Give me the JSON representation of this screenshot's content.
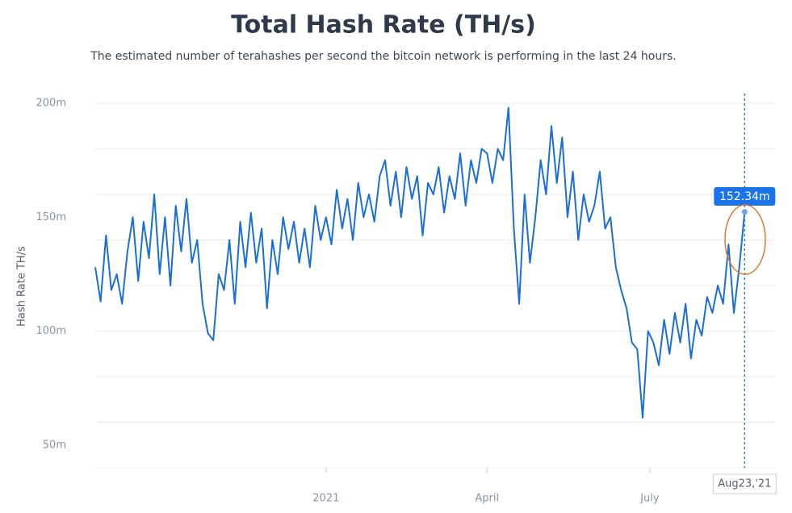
{
  "chart_data": {
    "type": "line",
    "title": "Total Hash Rate (TH/s)",
    "subtitle": "The estimated number of terahashes per second the bitcoin network is performing in the last 24 hours.",
    "y_label": "Hash Rate TH/s",
    "color": "#1a6fd6",
    "xlim": [
      "2020-08-25",
      "2021-09-09"
    ],
    "xticks": [
      {
        "value": "2021-01-01",
        "label": "2021"
      },
      {
        "value": "2021-04-01",
        "label": "April"
      },
      {
        "value": "2021-07-01",
        "label": "July"
      }
    ],
    "ylim": [
      40000000.0,
      200000000.0
    ],
    "yticks": [
      {
        "value": 50000000.0,
        "label": "50m"
      },
      {
        "value": 100000000.0,
        "label": "100m"
      },
      {
        "value": 150000000.0,
        "label": "150m"
      },
      {
        "value": 200000000.0,
        "label": "200m"
      }
    ],
    "grid_lines": [
      40000000.0,
      60000000.0,
      80000000.0,
      100000000.0,
      120000000.0,
      140000000.0,
      160000000.0,
      180000000.0,
      200000000.0
    ],
    "tooltip": {
      "x": "2021-08-23",
      "x_label": "Aug23,'21",
      "value": 152340000,
      "value_label": "152.34m"
    },
    "x": [
      "2020-08-25",
      "2020-08-28",
      "2020-08-31",
      "2020-09-03",
      "2020-09-06",
      "2020-09-09",
      "2020-09-12",
      "2020-09-15",
      "2020-09-18",
      "2020-09-21",
      "2020-09-24",
      "2020-09-27",
      "2020-09-30",
      "2020-10-03",
      "2020-10-06",
      "2020-10-09",
      "2020-10-12",
      "2020-10-15",
      "2020-10-18",
      "2020-10-21",
      "2020-10-24",
      "2020-10-27",
      "2020-10-30",
      "2020-11-02",
      "2020-11-05",
      "2020-11-08",
      "2020-11-11",
      "2020-11-14",
      "2020-11-17",
      "2020-11-20",
      "2020-11-23",
      "2020-11-26",
      "2020-11-29",
      "2020-12-02",
      "2020-12-05",
      "2020-12-08",
      "2020-12-11",
      "2020-12-14",
      "2020-12-17",
      "2020-12-20",
      "2020-12-23",
      "2020-12-26",
      "2020-12-29",
      "2021-01-01",
      "2021-01-04",
      "2021-01-07",
      "2021-01-10",
      "2021-01-13",
      "2021-01-16",
      "2021-01-19",
      "2021-01-22",
      "2021-01-25",
      "2021-01-28",
      "2021-01-31",
      "2021-02-03",
      "2021-02-06",
      "2021-02-09",
      "2021-02-12",
      "2021-02-15",
      "2021-02-18",
      "2021-02-21",
      "2021-02-24",
      "2021-02-27",
      "2021-03-02",
      "2021-03-05",
      "2021-03-08",
      "2021-03-11",
      "2021-03-14",
      "2021-03-17",
      "2021-03-20",
      "2021-03-23",
      "2021-03-26",
      "2021-03-29",
      "2021-04-01",
      "2021-04-04",
      "2021-04-07",
      "2021-04-10",
      "2021-04-13",
      "2021-04-16",
      "2021-04-19",
      "2021-04-22",
      "2021-04-25",
      "2021-04-28",
      "2021-05-01",
      "2021-05-04",
      "2021-05-07",
      "2021-05-10",
      "2021-05-13",
      "2021-05-16",
      "2021-05-19",
      "2021-05-22",
      "2021-05-25",
      "2021-05-28",
      "2021-05-31",
      "2021-06-03",
      "2021-06-06",
      "2021-06-09",
      "2021-06-12",
      "2021-06-15",
      "2021-06-18",
      "2021-06-21",
      "2021-06-24",
      "2021-06-27",
      "2021-06-30",
      "2021-07-03",
      "2021-07-06",
      "2021-07-09",
      "2021-07-12",
      "2021-07-15",
      "2021-07-18",
      "2021-07-21",
      "2021-07-24",
      "2021-07-27",
      "2021-07-30",
      "2021-08-02",
      "2021-08-05",
      "2021-08-08",
      "2021-08-11",
      "2021-08-14",
      "2021-08-17",
      "2021-08-20",
      "2021-08-23"
    ],
    "values": [
      128000000.0,
      113000000.0,
      142000000.0,
      118000000.0,
      125000000.0,
      112000000.0,
      135000000.0,
      150000000.0,
      122000000.0,
      148000000.0,
      132000000.0,
      160000000.0,
      125000000.0,
      150000000.0,
      120000000.0,
      155000000.0,
      135000000.0,
      158000000.0,
      130000000.0,
      140000000.0,
      112000000.0,
      99000000.0,
      96000000.0,
      125000000.0,
      118000000.0,
      140000000.0,
      112000000.0,
      148000000.0,
      128000000.0,
      152000000.0,
      130000000.0,
      145000000.0,
      110000000.0,
      140000000.0,
      125000000.0,
      150000000.0,
      136000000.0,
      148000000.0,
      130000000.0,
      145000000.0,
      128000000.0,
      155000000.0,
      140000000.0,
      150000000.0,
      138000000.0,
      162000000.0,
      145000000.0,
      158000000.0,
      140000000.0,
      165000000.0,
      150000000.0,
      160000000.0,
      148000000.0,
      168000000.0,
      175000000.0,
      155000000.0,
      170000000.0,
      150000000.0,
      172000000.0,
      158000000.0,
      168000000.0,
      142000000.0,
      165000000.0,
      160000000.0,
      172000000.0,
      152000000.0,
      168000000.0,
      158000000.0,
      178000000.0,
      155000000.0,
      175000000.0,
      165000000.0,
      180000000.0,
      178000000.0,
      165000000.0,
      180000000.0,
      175000000.0,
      198000000.0,
      145000000.0,
      112000000.0,
      160000000.0,
      130000000.0,
      150000000.0,
      175000000.0,
      160000000.0,
      190000000.0,
      165000000.0,
      185000000.0,
      150000000.0,
      170000000.0,
      140000000.0,
      160000000.0,
      148000000.0,
      155000000.0,
      170000000.0,
      145000000.0,
      150000000.0,
      128000000.0,
      118000000.0,
      110000000.0,
      95000000.0,
      92000000.0,
      62000000.0,
      100000000.0,
      95000000.0,
      85000000.0,
      105000000.0,
      90000000.0,
      108000000.0,
      95000000.0,
      112000000.0,
      88000000.0,
      105000000.0,
      98000000.0,
      115000000.0,
      108000000.0,
      120000000.0,
      112000000.0,
      138000000.0,
      108000000.0,
      128000000.0,
      152340000
    ]
  }
}
